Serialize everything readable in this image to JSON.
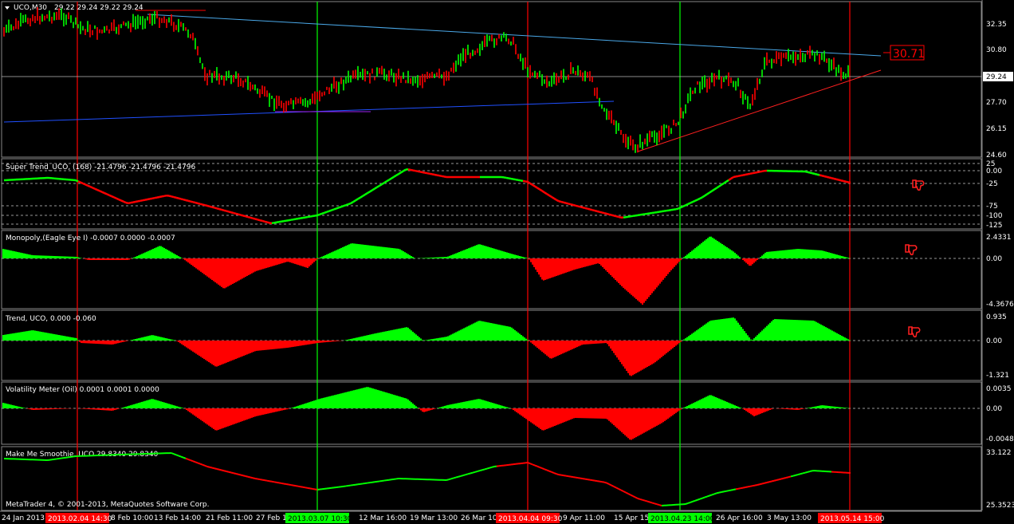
{
  "window": {
    "symbol_title": "UCO,M30",
    "ohlc_text": "29.22 29.24 29.22 29.24"
  },
  "price_pane": {
    "axis_ticks": [
      "32.35",
      "30.80",
      "27.70",
      "26.15",
      "24.60"
    ],
    "current_price": "29.24",
    "target_label": "30.71",
    "colors": {
      "up_candle": "#00ff00",
      "down_candle": "#ff0000",
      "blue_line": "#4a90e2",
      "red_trend": "#ff0000"
    }
  },
  "panes": [
    {
      "key": "supertrend",
      "title": "Super Trend_UCO, (168)  -21.4796 -21.4796 -21.4796",
      "ticks": [
        "25",
        "0.00",
        "-25",
        "-75",
        "-100",
        "-125"
      ]
    },
    {
      "key": "monopoly",
      "title": "Monopoly,(Eagle Eye I) -0.0007 0.0000 -0.0007",
      "ticks": [
        "2.4331",
        "0.00",
        "-4.3676"
      ]
    },
    {
      "key": "trend",
      "title": "Trend, UCO,  0.000 -0.060",
      "ticks": [
        "0.935",
        "0.00",
        "-1.321"
      ]
    },
    {
      "key": "volatility",
      "title": "Volatility Meter (Oil) 0.0001 0.0001 0.0000",
      "ticks": [
        "0.0035",
        "0.00",
        "-0.0048"
      ]
    },
    {
      "key": "smoothie",
      "title": "Make Me Smoothie, UCO 29.8340 29.8340",
      "ticks": [
        "33.122",
        "25.3523"
      ],
      "copyright": "MetaTrader 4, © 2001-2013, MetaQuotes Software Corp."
    }
  ],
  "time_axis": {
    "labels": [
      "24 Jan 2013",
      "8 Feb 10:00",
      "13 Feb 14:00",
      "21 Feb 11:00",
      "27 Feb 1",
      "12 Mar 16:00",
      "19 Mar 13:00",
      "26 Mar 10",
      "9 Apr 11:00",
      "15 Apr 15",
      "26 Apr 16:00",
      "3 May 13:00"
    ],
    "highlights": [
      {
        "text": "2013.02.04 14:30",
        "color": "#ff0000"
      },
      {
        "text": "2013.03.07 10:30",
        "color": "#00ff00"
      },
      {
        "text": "2013.04.04 09:30",
        "color": "#ff0000"
      },
      {
        "text": "2013.04.23 14:00",
        "color": "#00ff00"
      },
      {
        "text": "2013.05.14 15:00",
        "color": "#ff0000"
      }
    ]
  },
  "icons": [
    "thumbs-down-icon",
    "thumbs-down-icon",
    "thumbs-down-icon"
  ],
  "colors": {
    "bg": "#000000",
    "grid": "#ffffff",
    "green": "#00ff00",
    "red": "#ff0000",
    "blue": "#4a90e2"
  }
}
